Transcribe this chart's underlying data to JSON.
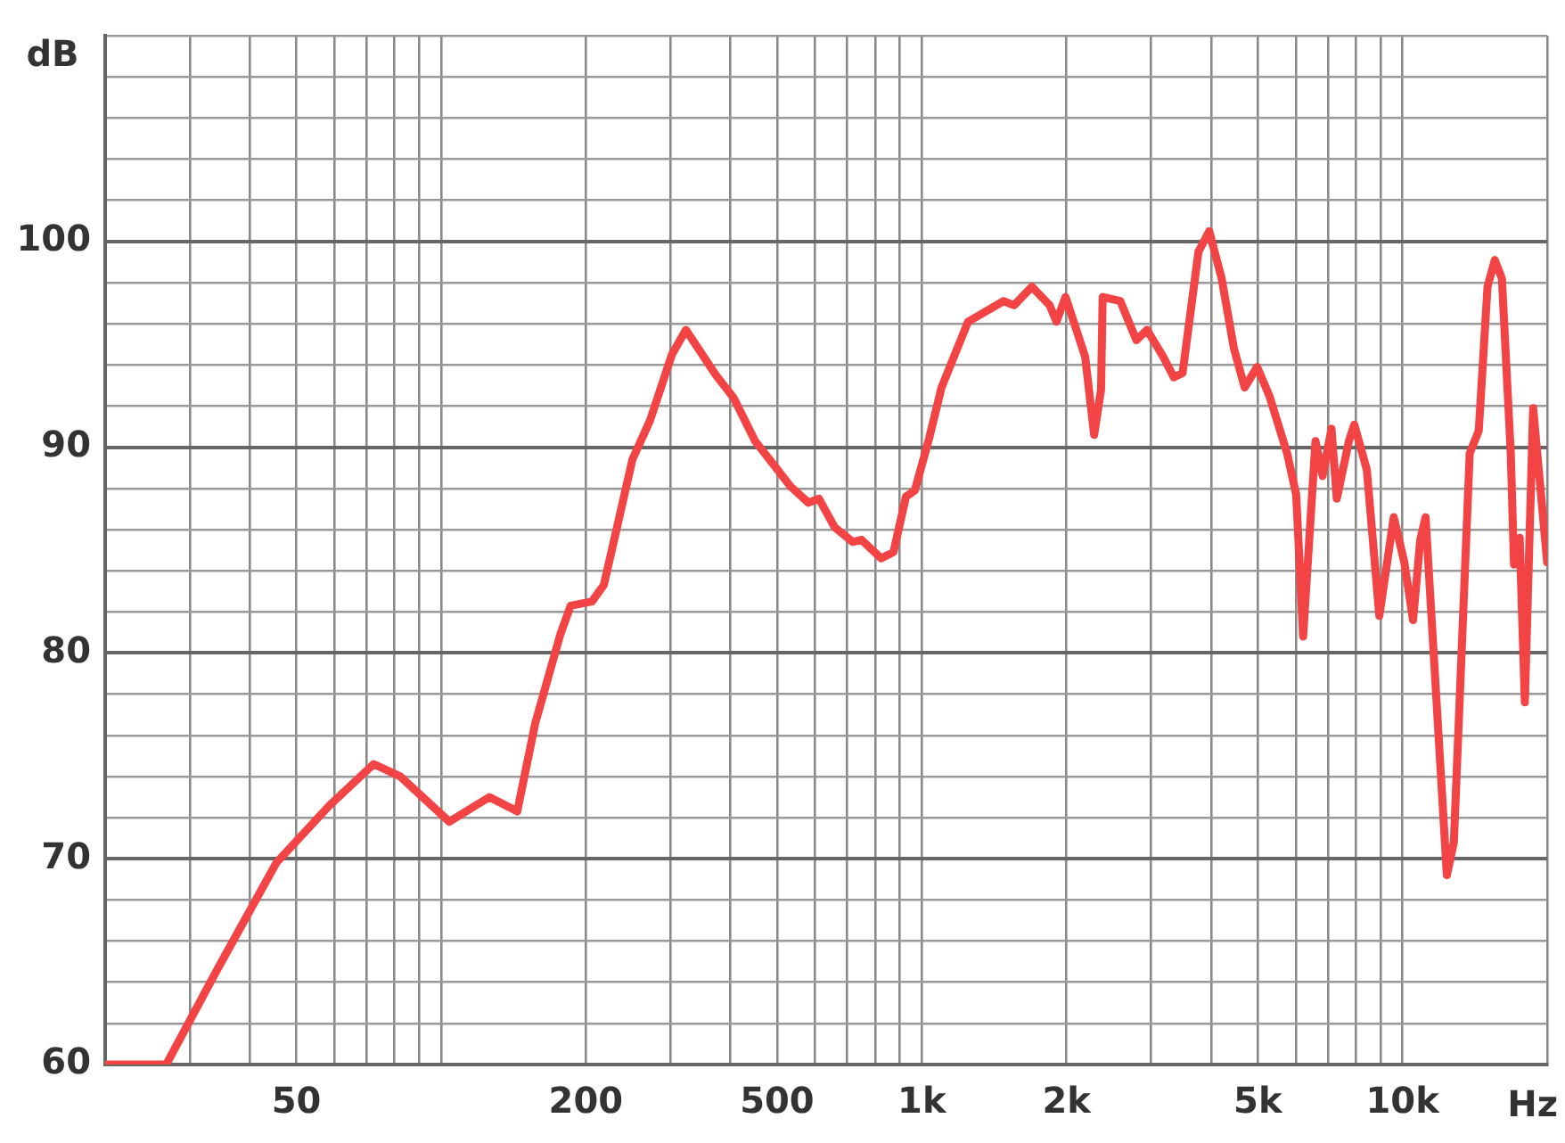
{
  "chart_data": {
    "type": "line",
    "xlabel": "Hz",
    "ylabel": "dB",
    "log": "x",
    "grid": true,
    "legend": false,
    "marker": "none",
    "line_style": "solid",
    "xlim": [
      20,
      20000
    ],
    "xticks": [
      {
        "value": 20,
        "label": null
      },
      {
        "value": 30,
        "label": null
      },
      {
        "value": 40,
        "label": null
      },
      50,
      {
        "value": 60,
        "label": null
      },
      {
        "value": 70,
        "label": null
      },
      {
        "value": 80,
        "label": null
      },
      {
        "value": 90,
        "label": null
      },
      {
        "value": 100,
        "label": null
      },
      200,
      {
        "value": 300,
        "label": null
      },
      {
        "value": 400,
        "label": null
      },
      500,
      {
        "value": 600,
        "label": null
      },
      {
        "value": 700,
        "label": null
      },
      {
        "value": 800,
        "label": null
      },
      {
        "value": 900,
        "label": null
      },
      {
        "value": 1000,
        "label": "1k"
      },
      {
        "value": 2000,
        "label": "2k"
      },
      {
        "value": 3000,
        "label": null
      },
      {
        "value": 4000,
        "label": null
      },
      {
        "value": 5000,
        "label": "5k"
      },
      {
        "value": 6000,
        "label": null
      },
      {
        "value": 7000,
        "label": null
      },
      {
        "value": 8000,
        "label": null
      },
      {
        "value": 9000,
        "label": null
      },
      {
        "value": 10000,
        "label": "10k"
      },
      {
        "value": 20000,
        "label": null
      }
    ],
    "ylim": [
      60,
      110
    ],
    "yticks": [
      60,
      {
        "value": 62,
        "label": null
      },
      {
        "value": 64,
        "label": null
      },
      {
        "value": 66,
        "label": null
      },
      {
        "value": 68,
        "label": null
      },
      70,
      {
        "value": 72,
        "label": null
      },
      {
        "value": 74,
        "label": null
      },
      {
        "value": 76,
        "label": null
      },
      {
        "value": 78,
        "label": null
      },
      80,
      {
        "value": 82,
        "label": null
      },
      {
        "value": 84,
        "label": null
      },
      {
        "value": 86,
        "label": null
      },
      {
        "value": 88,
        "label": null
      },
      90,
      {
        "value": 92,
        "label": null
      },
      {
        "value": 94,
        "label": null
      },
      {
        "value": 96,
        "label": null
      },
      {
        "value": 98,
        "label": null
      },
      100,
      {
        "value": 102,
        "label": null
      },
      {
        "value": 104,
        "label": null
      },
      {
        "value": 106,
        "label": null
      },
      {
        "value": 108,
        "label": null
      },
      {
        "value": 110,
        "label": null
      }
    ],
    "series": [
      {
        "color": "#f24444",
        "x": [
          20,
          26.8,
          34,
          45.4,
          58.6,
          72.4,
          82.2,
          104,
          126,
          144,
          157,
          177,
          186,
          206,
          218,
          250,
          272,
          302,
          323,
          373,
          406,
          450,
          533,
          581,
          611,
          659,
          718,
          749,
          823,
          873,
          927,
          967,
          1035,
          1099,
          1248,
          1358,
          1479,
          1556,
          1694,
          1845,
          1906,
          1991,
          2077,
          2187,
          2283,
          2360,
          2378,
          2588,
          2795,
          2941,
          3177,
          3344,
          3487,
          3763,
          3962,
          4205,
          4460,
          4695,
          4983,
          5285,
          5755,
          6010,
          6213,
          6592,
          6820,
          7117,
          7300,
          7737,
          7940,
          8430,
          8950,
          9590,
          10090,
          10520,
          10890,
          11170,
          12370,
          12790,
          13800,
          14410,
          15030,
          15560,
          16100,
          16800,
          17060,
          17530,
          17970,
          18700,
          20000
        ],
        "values": [
          60,
          60,
          64.5,
          69.8,
          72.6,
          74.6,
          74,
          71.8,
          73,
          72.3,
          76.6,
          80.9,
          82.3,
          82.5,
          83.3,
          89.4,
          91.3,
          94.5,
          95.7,
          93.5,
          92.4,
          90.3,
          88.1,
          87.3,
          87.5,
          86.1,
          85.4,
          85.5,
          84.6,
          84.9,
          87.6,
          87.9,
          90.4,
          92.9,
          96.1,
          96.6,
          97.1,
          96.9,
          97.8,
          96.9,
          96.1,
          97.3,
          96,
          94.4,
          90.6,
          92.8,
          97.3,
          97.1,
          95.2,
          95.7,
          94.4,
          93.4,
          93.6,
          99.5,
          100.5,
          98.2,
          94.8,
          92.9,
          93.9,
          92.5,
          89.7,
          87.7,
          80.8,
          90.3,
          88.6,
          90.9,
          87.5,
          90.3,
          91.1,
          88.9,
          81.8,
          86.6,
          84.4,
          81.6,
          85.5,
          86.6,
          69.2,
          70.8,
          89.7,
          90.8,
          97.8,
          99.1,
          98.2,
          89.7,
          84.3,
          85.6,
          77.6,
          91.9,
          84.4
        ]
      }
    ]
  }
}
